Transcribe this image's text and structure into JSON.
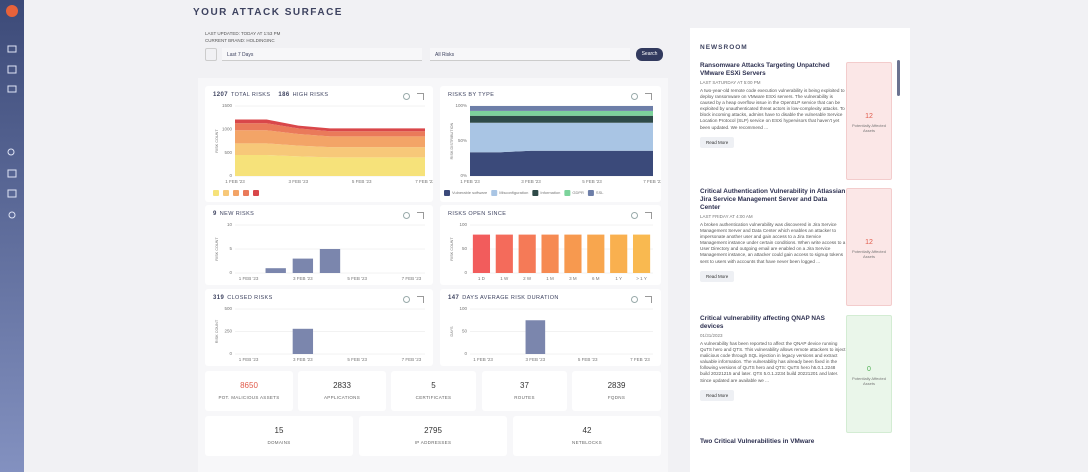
{
  "header": {
    "title": "YOUR ATTACK SURFACE",
    "last_updated": "LAST UPDATED: TODAY AT 1:53 PM",
    "brand": "CURRENT BRAND: HOLDINGINC",
    "period": "Last 7 Days",
    "risk_filter": "All Risks",
    "search": "Search"
  },
  "chart_data": [
    {
      "type": "area",
      "headline": [
        {
          "count": 1207,
          "text": "TOTAL RISKS"
        },
        {
          "count": 186,
          "text": "HIGH RISKS"
        }
      ],
      "ylabel": "RISK COUNT",
      "categories": [
        "1 FEB '23",
        null,
        "3 FEB '23",
        null,
        "5 FEB '23",
        null,
        "7 FEB '23"
      ],
      "ylim": [
        0,
        1500
      ],
      "yticks": [
        0,
        500,
        1000,
        1500
      ],
      "series": [
        {
          "color": "#f6e27a",
          "values": [
            450,
            450,
            420,
            400,
            400,
            400,
            400
          ]
        },
        {
          "color": "#f7c879",
          "values": [
            250,
            250,
            230,
            220,
            220,
            220,
            220
          ]
        },
        {
          "color": "#f3a467",
          "values": [
            280,
            280,
            250,
            230,
            230,
            230,
            230
          ]
        },
        {
          "color": "#ea7a5a",
          "values": [
            150,
            150,
            120,
            110,
            110,
            110,
            110
          ]
        },
        {
          "color": "#d9474a",
          "values": [
            80,
            80,
            60,
            60,
            60,
            60,
            60
          ]
        }
      ]
    },
    {
      "type": "area",
      "title": "RISKS BY TYPE",
      "ylabel": "RISK DISTRIBUTION",
      "categories": [
        "1 FEB '23",
        null,
        "3 FEB '23",
        null,
        "5 FEB '23",
        null,
        "7 FEB '23"
      ],
      "ylim": [
        0,
        100
      ],
      "yticks": [
        {
          "value": 0,
          "label": "0%"
        },
        {
          "value": 50,
          "label": "50%"
        },
        {
          "value": 100,
          "label": "100%"
        }
      ],
      "series": [
        {
          "name": "Vulnerable software",
          "color": "#3b4a7a",
          "values": [
            34,
            34,
            36,
            36,
            36,
            36,
            36
          ]
        },
        {
          "name": "Misconfiguration",
          "color": "#a9c5e4",
          "values": [
            42,
            42,
            40,
            40,
            40,
            40,
            40
          ]
        },
        {
          "name": "Information",
          "color": "#2e4a48",
          "values": [
            10,
            10,
            10,
            10,
            10,
            10,
            10
          ]
        },
        {
          "name": "GDPR",
          "color": "#7cd39b",
          "values": [
            7,
            7,
            7,
            7,
            7,
            7,
            7
          ]
        },
        {
          "name": "SSL",
          "color": "#6d7ea8",
          "values": [
            7,
            7,
            7,
            7,
            7,
            7,
            7
          ]
        }
      ]
    },
    {
      "type": "bar",
      "headline": [
        {
          "count": 9,
          "text": "NEW RISKS"
        }
      ],
      "ylabel": "RISK COUNT",
      "color": "#7b86ad",
      "categories": [
        "1 FEB '23",
        null,
        "3 FEB '23",
        null,
        "5 FEB '23",
        null,
        "7 FEB '23"
      ],
      "values": [
        0,
        1,
        3,
        5,
        0,
        0,
        0
      ],
      "ylim": [
        0,
        10
      ],
      "yticks": [
        0,
        5,
        10
      ]
    },
    {
      "type": "bar",
      "title": "RISKS OPEN SINCE",
      "ylabel": "RISK COUNT",
      "categories": [
        "1 D",
        "1 W",
        "2 W",
        "1 M",
        "3 M",
        "6 M",
        "1 Y",
        "> 1 Y"
      ],
      "values": [
        80,
        80,
        80,
        80,
        80,
        80,
        80,
        80
      ],
      "colors": [
        "#f25c5c",
        "#f46b5b",
        "#f57a57",
        "#f68a52",
        "#f7994f",
        "#f8a64e",
        "#f9b04f",
        "#f9b950"
      ],
      "ylim": [
        0,
        100
      ],
      "yticks": [
        0,
        50,
        100
      ]
    },
    {
      "type": "bar",
      "headline": [
        {
          "count": 319,
          "text": "CLOSED RISKS"
        }
      ],
      "ylabel": "RISK COUNT",
      "color": "#7b86ad",
      "categories": [
        "1 FEB '23",
        null,
        "3 FEB '23",
        null,
        "5 FEB '23",
        null,
        "7 FEB '23"
      ],
      "values": [
        0,
        0,
        280,
        0,
        0,
        0,
        0
      ],
      "ylim": [
        0,
        500
      ],
      "yticks": [
        0,
        250,
        500
      ]
    },
    {
      "type": "bar",
      "headline": [
        {
          "count": 147,
          "text": "DAYS AVERAGE RISK DURATION"
        }
      ],
      "ylabel": "DAYS",
      "color": "#7b86ad",
      "categories": [
        "1 FEB '23",
        null,
        "3 FEB '23",
        null,
        "5 FEB '23",
        null,
        "7 FEB '23"
      ],
      "values": [
        0,
        0,
        75,
        0,
        0,
        0,
        0
      ],
      "ylim": [
        0,
        100
      ],
      "yticks": [
        0,
        50,
        100
      ]
    }
  ],
  "stats": [
    {
      "value": 8650,
      "label": "POT. MALICIOUS ASSETS"
    },
    {
      "value": 2833,
      "label": "APPLICATIONS"
    },
    {
      "value": 5,
      "label": "CERTIFICATES"
    },
    {
      "value": 37,
      "label": "ROUTES"
    },
    {
      "value": 2839,
      "label": "FQDNS"
    },
    {
      "value": 15,
      "label": "DOMAINS"
    },
    {
      "value": 2795,
      "label": "IP ADDRESSES"
    },
    {
      "value": 42,
      "label": "NETBLOCKS"
    }
  ],
  "newsroom": {
    "title": "NEWSROOM",
    "read_more": "Read More",
    "affected_label": "Potentially Affected Assets",
    "articles": [
      {
        "title": "Ransomware Attacks Targeting Unpatched VMware ESXi Servers",
        "date": "LAST SATURDAY AT 5:00 PM",
        "body": "A two-year-old remote code execution vulnerability is being exploited to deploy ransomware on VMware ESXi servers. The vulnerability is caused by a heap overflow issue in the OpenSLP service that can be exploited by unauthenticated threat actors in low-complexity attacks. To block incoming attacks, admins have to disable the vulnerable Service Location Protocol (SLP) service on ESXi hypervisors that haven't yet been updated. We recommend ...",
        "affected": 12
      },
      {
        "title": "Critical Authentication Vulnerability in Atlassian Jira Service Management Server and Data Center",
        "date": "LAST FRIDAY AT 4:00 AM",
        "body": "A broken authentication vulnerability was discovered in Jira Service Management Server and Data Center which enables an attacker to impersonate another user and gain access to a Jira Service Management instance under certain conditions. When write access to a User Directory and outgoing email are enabled on a Jira Service Management instance, an attacker could gain access to signup tokens sent to users with accounts that have never been logged ...",
        "affected": 12
      },
      {
        "title": "Critical vulnerability affecting QNAP NAS devices",
        "date": "01/31/2023",
        "body": "A vulnerability has been reported to affect the QNAP device running QuTS hero and QTS. This vulnerability allows remote attackers to inject malicious code through SQL injection in legacy versions and extract valuable information. The vulnerability has already been fixed in the following versions of QuTS hero and QTS: QuTS hero h5.0.1.2248 build 20221215 and later. QTS 5.0.1.2234 build 20221201 and later. Since updated are available we ...",
        "affected": 0
      },
      {
        "title": "Two Critical Vulnerabilities in VMware"
      }
    ]
  }
}
